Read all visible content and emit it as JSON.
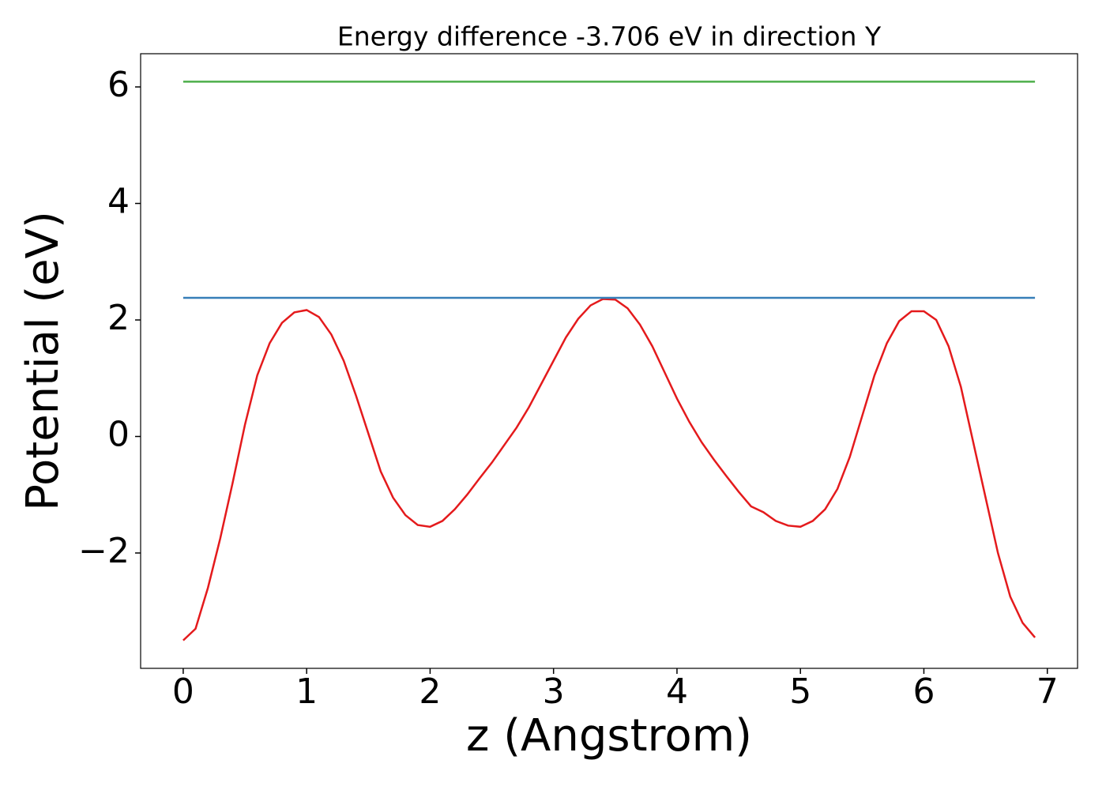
{
  "chart_data": {
    "type": "line",
    "title": "Energy difference -3.706 eV in direction Y",
    "xlabel": "z (Angstrom)",
    "ylabel": "Potential (eV)",
    "xlim": [
      -0.345,
      7.245
    ],
    "ylim": [
      -3.98,
      6.57
    ],
    "xticks": [
      0,
      1,
      2,
      3,
      4,
      5,
      6,
      7
    ],
    "yticks": [
      -2,
      0,
      2,
      4,
      6
    ],
    "grid": false,
    "series": [
      {
        "color": "#e41a1c",
        "x": [
          0,
          0.1,
          0.2,
          0.3,
          0.4,
          0.5,
          0.6,
          0.7,
          0.8,
          0.9,
          1.0,
          1.1,
          1.2,
          1.3,
          1.4,
          1.5,
          1.6,
          1.7,
          1.8,
          1.9,
          2.0,
          2.1,
          2.2,
          2.3,
          2.4,
          2.5,
          2.6,
          2.7,
          2.8,
          2.9,
          3.0,
          3.1,
          3.2,
          3.3,
          3.4,
          3.5,
          3.6,
          3.7,
          3.8,
          3.9,
          4.0,
          4.1,
          4.2,
          4.3,
          4.4,
          4.5,
          4.6,
          4.7,
          4.8,
          4.9,
          5.0,
          5.1,
          5.2,
          5.3,
          5.4,
          5.5,
          5.6,
          5.7,
          5.8,
          5.9,
          6.0,
          6.1,
          6.2,
          6.3,
          6.4,
          6.5,
          6.6,
          6.7,
          6.8,
          6.9
        ],
        "values": [
          -3.5,
          -3.3,
          -2.6,
          -1.75,
          -0.8,
          0.2,
          1.05,
          1.6,
          1.95,
          2.13,
          2.17,
          2.05,
          1.75,
          1.3,
          0.7,
          0.05,
          -0.6,
          -1.05,
          -1.35,
          -1.52,
          -1.55,
          -1.45,
          -1.25,
          -1.0,
          -0.72,
          -0.45,
          -0.15,
          0.15,
          0.5,
          0.9,
          1.3,
          1.7,
          2.02,
          2.25,
          2.36,
          2.35,
          2.2,
          1.92,
          1.55,
          1.1,
          0.65,
          0.25,
          -0.1,
          -0.4,
          -0.68,
          -0.95,
          -1.2,
          -1.3,
          -1.45,
          -1.53,
          -1.55,
          -1.45,
          -1.25,
          -0.9,
          -0.35,
          0.35,
          1.05,
          1.6,
          1.98,
          2.15,
          2.15,
          2.0,
          1.55,
          0.85,
          -0.1,
          -1.05,
          -2.0,
          -2.75,
          -3.2,
          -3.45
        ]
      },
      {
        "color": "#377eb8",
        "x": [
          0,
          6.9
        ],
        "values": [
          2.38,
          2.38
        ]
      },
      {
        "color": "#4daf4a",
        "x": [
          0,
          6.9
        ],
        "values": [
          6.09,
          6.09
        ]
      }
    ]
  }
}
